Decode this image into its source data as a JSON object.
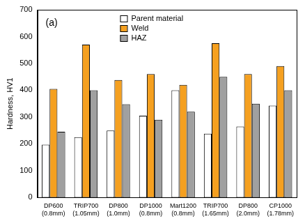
{
  "chart_data": {
    "type": "bar",
    "annotation": "(a)",
    "y_label": "Hardness, HV1",
    "categories": [
      [
        "DP600",
        "(0.8mm)"
      ],
      [
        "TRIP700",
        "(1.05mm)"
      ],
      [
        "DP800",
        "(1.0mm)"
      ],
      [
        "DP1000",
        "(0.8mm)"
      ],
      [
        "Mart1200",
        "(0.8mm)"
      ],
      [
        "TRIP700",
        "(1.65mm)"
      ],
      [
        "DP800",
        "(2.0mm)"
      ],
      [
        "CP1000",
        "(1.78mm)"
      ]
    ],
    "series": [
      {
        "name": "Parent material",
        "color": "#ffffff",
        "values": [
          197,
          225,
          250,
          305,
          400,
          238,
          265,
          343
        ]
      },
      {
        "name": "Weld",
        "color": "#f5a020",
        "values": [
          405,
          570,
          438,
          460,
          420,
          575,
          460,
          490
        ]
      },
      {
        "name": "HAZ",
        "color": "#a0a0a0",
        "values": [
          245,
          400,
          348,
          290,
          320,
          450,
          350,
          400
        ]
      }
    ],
    "ylim": [
      0,
      700
    ],
    "yticks": [
      0,
      100,
      200,
      300,
      400,
      500,
      600,
      700
    ],
    "grid": false,
    "legend": "top"
  }
}
